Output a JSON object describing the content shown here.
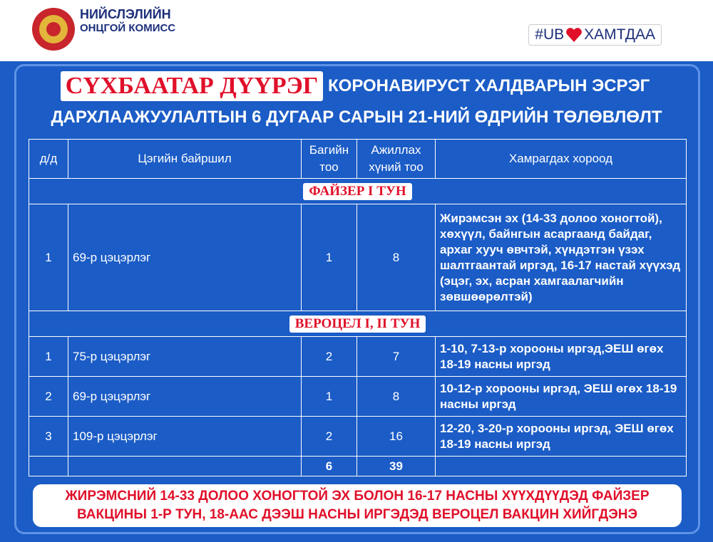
{
  "header": {
    "org_line1": "НИЙСЛЭЛИЙН",
    "org_line2": "ОНЦГОЙ КОМИСС",
    "hashtag_prefix": "#UB",
    "hashtag_suffix": "ХАМТДАА"
  },
  "title": {
    "district": "СҮХБААТАР ДҮҮРЭГ",
    "line1": "КОРОНАВИРУСТ ХАЛДВАРЫН ЭСРЭГ",
    "line2": "ДАРХЛААЖУУЛАЛТЫН 6 ДУГААР САРЫН 21-НИЙ ӨДРИЙН ТӨЛӨВЛӨЛТ"
  },
  "table": {
    "columns": [
      "д/д",
      "Цэгийн байршил",
      "Багийн тоо",
      "Ажиллах хүний тоо",
      "Хамрагдах хороод"
    ],
    "sections": [
      {
        "title": "ФАЙЗЕР I ТУН",
        "rows": [
          [
            "1",
            "69-р цэцэрлэг",
            "1",
            "8",
            "Жирэмсэн эх (14-33 долоо хоногтой), хөхүүл, байнгын асаргаанд байдаг, архаг хууч өвчтэй, хүндэтгэн үзэх шалтгаантай иргэд, 16-17 настай хүүхэд (эцэг, эх, асран хамгаалагчийн зөвшөөрөлтэй)"
          ]
        ]
      },
      {
        "title": "ВЕРОЦЕЛ I, II ТУН",
        "rows": [
          [
            "1",
            "75-р цэцэрлэг",
            "2",
            "7",
            "1-10, 7-13-р хорооны иргэд,ЭЕШ өгөх 18-19 насны иргэд"
          ],
          [
            "2",
            "69-р цэцэрлэг",
            "1",
            "8",
            "10-12-р хорооны иргэд, ЭЕШ өгөх 18-19 насны иргэд"
          ],
          [
            "3",
            "109-р цэцэрлэг",
            "2",
            "16",
            "12-20, 3-20-р хорооны иргэд, ЭЕШ өгөх 18-19 насны иргэд"
          ]
        ]
      }
    ],
    "totals": [
      "6",
      "39"
    ]
  },
  "footer": {
    "lines": [
      "ЖИРЭМСНИЙ 14-33 ДОЛОО ХОНОГТОЙ ЭХ БОЛОН 16-17 НАСНЫ ХҮҮХДҮҮДЭД ФАЙЗЕР",
      "ВАКЦИНЫ 1-Р ТУН, 18-ААС ДЭЭШ НАСНЫ ИРГЭДЭД ВЕРОЦЕЛ ВАКЦИН ХИЙГДЭНЭ"
    ]
  }
}
